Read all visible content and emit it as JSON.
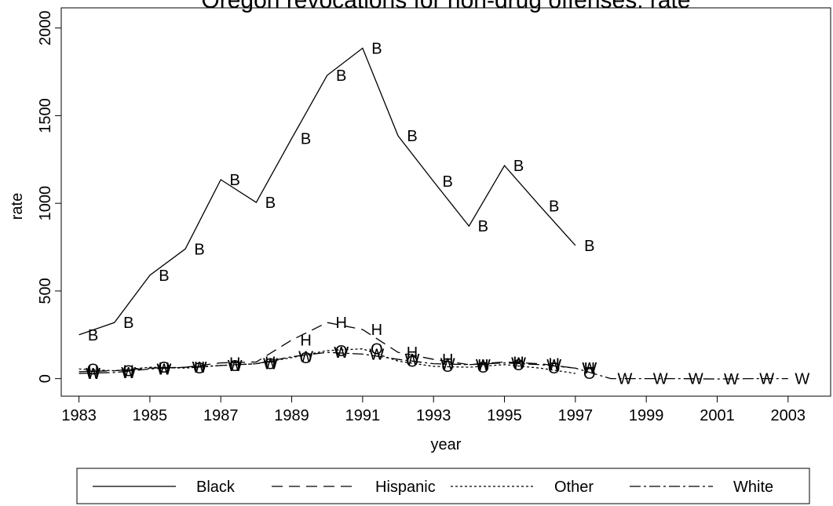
{
  "chart_data": {
    "type": "line",
    "title": "Oregon revocations for non-drug offenses: rate",
    "x_label": "year",
    "y_label": "rate",
    "x": [
      1983,
      1984,
      1985,
      1986,
      1987,
      1988,
      1989,
      1990,
      1991,
      1992,
      1993,
      1994,
      1995,
      1996,
      1997,
      1998,
      1999,
      2000,
      2001,
      2002,
      2003
    ],
    "series": [
      {
        "name": "Black",
        "marker": "B",
        "color": "#000000",
        "dash": "none",
        "values": [
          250,
          320,
          590,
          740,
          1135,
          1005,
          1370,
          1730,
          1885,
          1385,
          1125,
          870,
          1215,
          985,
          760,
          null,
          null,
          null,
          null,
          null,
          null
        ]
      },
      {
        "name": "Hispanic",
        "marker": "H",
        "color": "#000000",
        "dash": "14,8",
        "values": [
          40,
          45,
          60,
          65,
          90,
          95,
          220,
          320,
          280,
          150,
          110,
          80,
          95,
          85,
          60,
          null,
          null,
          null,
          null,
          null,
          null
        ]
      },
      {
        "name": "Other",
        "marker": "O",
        "color": "#000000",
        "dash": "3,3",
        "values": [
          55,
          45,
          65,
          60,
          75,
          85,
          120,
          160,
          170,
          100,
          70,
          65,
          80,
          60,
          30,
          null,
          null,
          null,
          null,
          null,
          null
        ]
      },
      {
        "name": "White",
        "marker": "W",
        "color": "#000000",
        "dash": "14,4,3,4",
        "values": [
          30,
          35,
          55,
          65,
          75,
          85,
          125,
          150,
          140,
          110,
          85,
          80,
          90,
          80,
          60,
          0,
          0,
          0,
          -2,
          0,
          0
        ]
      }
    ],
    "xlim": [
      1982.5,
      2004.2
    ],
    "ylim": [
      -100,
      2115
    ],
    "xticks": [
      1983,
      1985,
      1987,
      1989,
      1991,
      1993,
      1995,
      1997,
      1999,
      2001,
      2003
    ],
    "yticks": [
      0,
      500,
      1000,
      1500,
      2000
    ],
    "legend": "bottom"
  }
}
